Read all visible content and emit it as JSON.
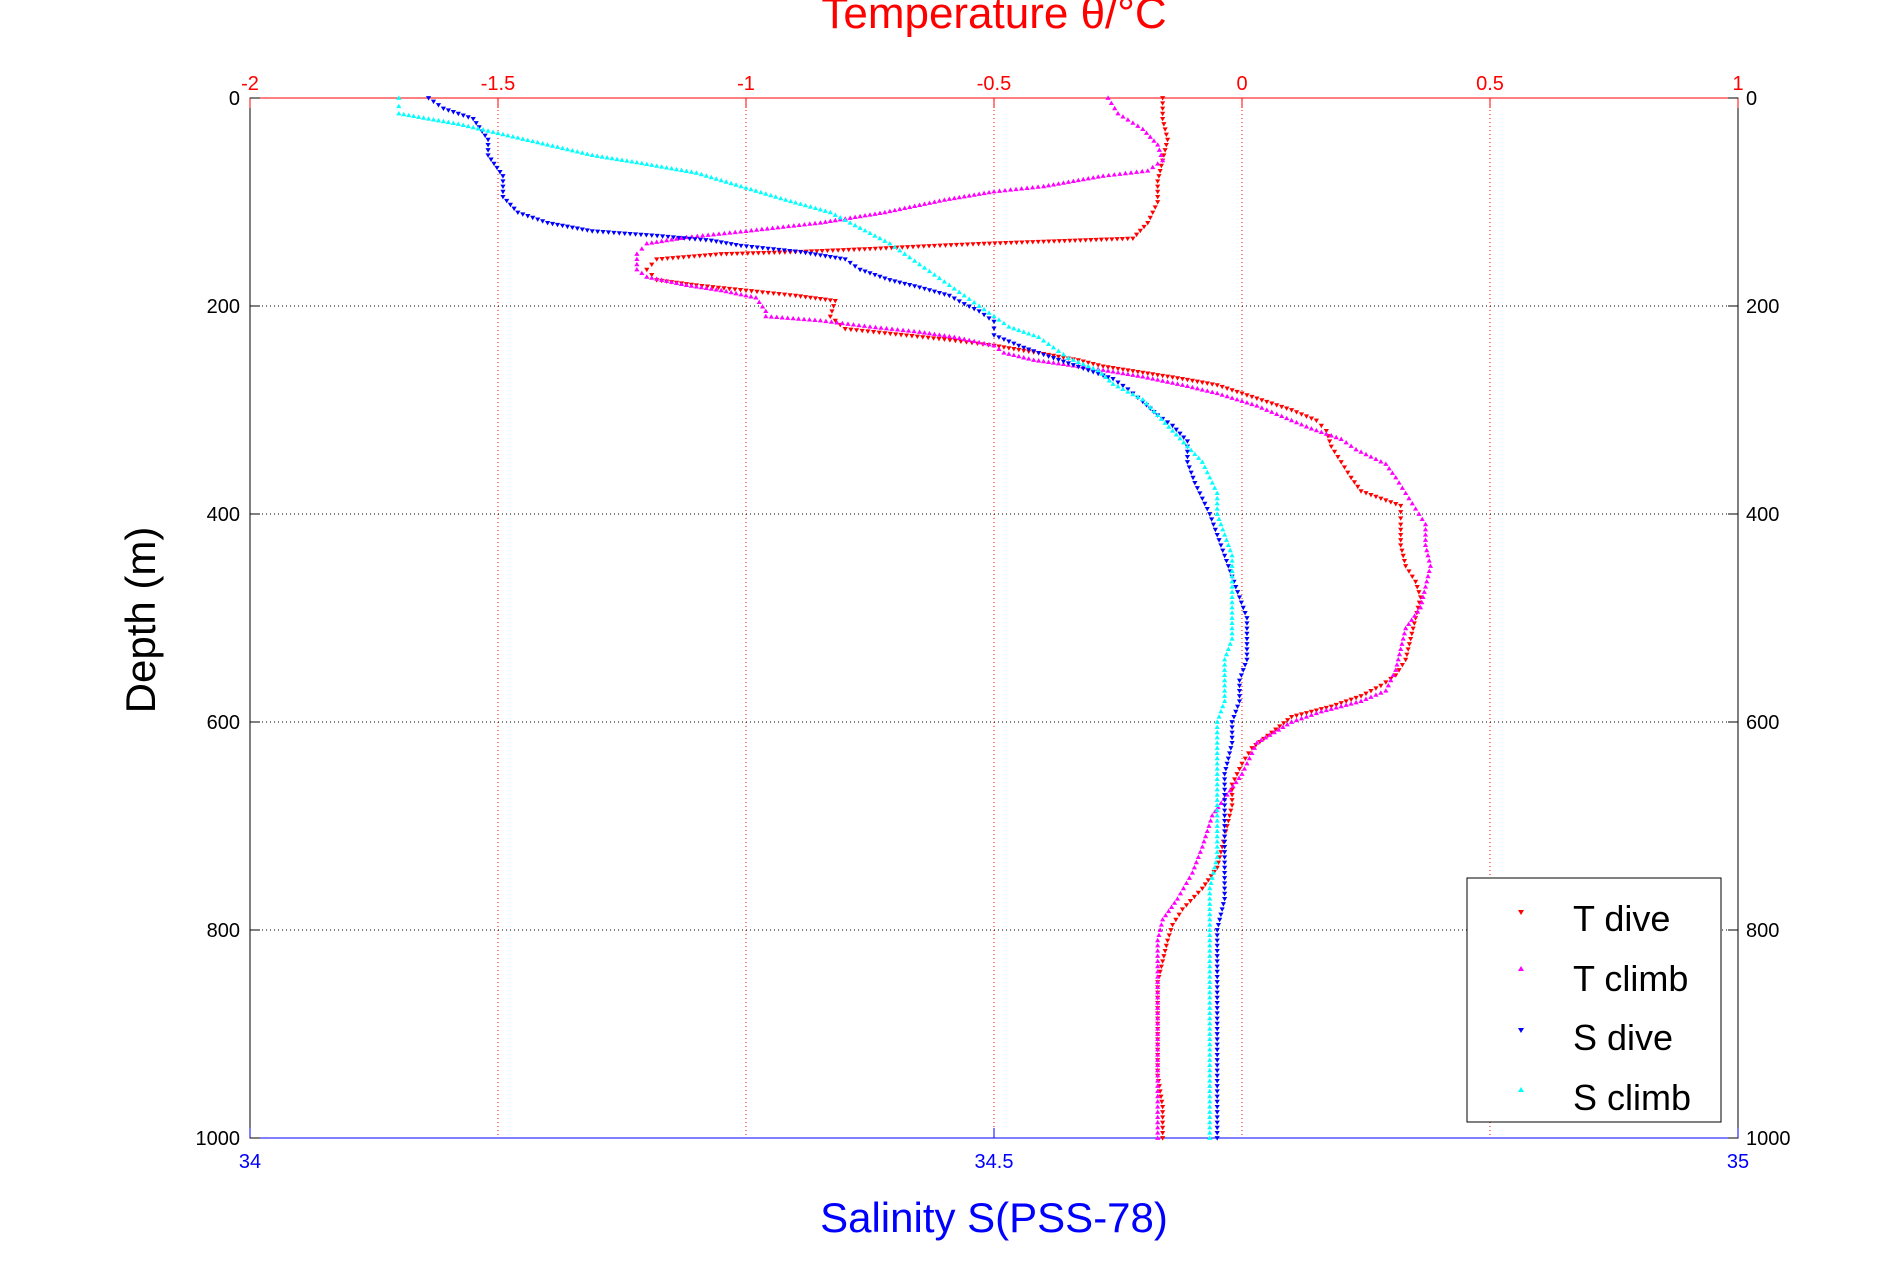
{
  "chart_data": {
    "type": "scatter",
    "title": "Temperature θ/°C",
    "ylabel": "Depth (m)",
    "xlabel": "Salinity S(PSS-78)",
    "temperature_axis": {
      "range": [
        -2,
        1
      ],
      "ticks": [
        "-2",
        "-1.5",
        "-1",
        "-0.5",
        "0",
        "0.5",
        "1"
      ],
      "color": "#ff0000"
    },
    "salinity_axis": {
      "range": [
        34,
        35
      ],
      "ticks": [
        "34",
        "34.5",
        "35"
      ],
      "color": "#0000ff"
    },
    "depth_axis": {
      "range": [
        0,
        1000
      ],
      "reversed": true,
      "ticks": [
        "0",
        "200",
        "400",
        "600",
        "800",
        "1000"
      ]
    },
    "grid": true,
    "legend_position": "bottom-right",
    "series": [
      {
        "name": "T dive",
        "axis": "temperature",
        "color": "#ff0000",
        "marker": "triangle-down",
        "points": [
          [
            -0.16,
            0
          ],
          [
            -0.16,
            20
          ],
          [
            -0.15,
            40
          ],
          [
            -0.16,
            60
          ],
          [
            -0.17,
            80
          ],
          [
            -0.17,
            100
          ],
          [
            -0.19,
            120
          ],
          [
            -0.22,
            135
          ],
          [
            -0.4,
            138
          ],
          [
            -0.52,
            140
          ],
          [
            -0.62,
            142
          ],
          [
            -0.75,
            145
          ],
          [
            -0.9,
            148
          ],
          [
            -1.05,
            150
          ],
          [
            -1.18,
            155
          ],
          [
            -1.2,
            165
          ],
          [
            -1.18,
            175
          ],
          [
            -1.1,
            180
          ],
          [
            -1.0,
            185
          ],
          [
            -0.9,
            190
          ],
          [
            -0.82,
            195
          ],
          [
            -0.83,
            210
          ],
          [
            -0.8,
            222
          ],
          [
            -0.72,
            226
          ],
          [
            -0.6,
            232
          ],
          [
            -0.5,
            238
          ],
          [
            -0.4,
            246
          ],
          [
            -0.33,
            252
          ],
          [
            -0.28,
            258
          ],
          [
            -0.2,
            264
          ],
          [
            -0.12,
            270
          ],
          [
            -0.05,
            276
          ],
          [
            0.0,
            284
          ],
          [
            0.05,
            292
          ],
          [
            0.1,
            300
          ],
          [
            0.15,
            310
          ],
          [
            0.17,
            320
          ],
          [
            0.18,
            335
          ],
          [
            0.2,
            350
          ],
          [
            0.22,
            365
          ],
          [
            0.24,
            378
          ],
          [
            0.28,
            385
          ],
          [
            0.32,
            392
          ],
          [
            0.32,
            410
          ],
          [
            0.32,
            430
          ],
          [
            0.33,
            450
          ],
          [
            0.35,
            465
          ],
          [
            0.36,
            480
          ],
          [
            0.35,
            500
          ],
          [
            0.34,
            520
          ],
          [
            0.33,
            540
          ],
          [
            0.31,
            555
          ],
          [
            0.28,
            565
          ],
          [
            0.24,
            575
          ],
          [
            0.18,
            585
          ],
          [
            0.1,
            595
          ],
          [
            0.06,
            610
          ],
          [
            0.02,
            625
          ],
          [
            0.0,
            640
          ],
          [
            -0.02,
            660
          ],
          [
            -0.02,
            680
          ],
          [
            -0.03,
            700
          ],
          [
            -0.04,
            720
          ],
          [
            -0.05,
            740
          ],
          [
            -0.08,
            760
          ],
          [
            -0.12,
            780
          ],
          [
            -0.14,
            795
          ],
          [
            -0.15,
            810
          ],
          [
            -0.16,
            830
          ],
          [
            -0.17,
            850
          ],
          [
            -0.17,
            880
          ],
          [
            -0.17,
            910
          ],
          [
            -0.17,
            940
          ],
          [
            -0.16,
            970
          ],
          [
            -0.16,
            1000
          ]
        ]
      },
      {
        "name": "T climb",
        "axis": "temperature",
        "color": "#ff00ff",
        "marker": "triangle-up",
        "points": [
          [
            -0.27,
            0
          ],
          [
            -0.25,
            15
          ],
          [
            -0.2,
            30
          ],
          [
            -0.17,
            45
          ],
          [
            -0.16,
            60
          ],
          [
            -0.19,
            70
          ],
          [
            -0.28,
            75
          ],
          [
            -0.4,
            85
          ],
          [
            -0.5,
            90
          ],
          [
            -0.6,
            98
          ],
          [
            -0.72,
            110
          ],
          [
            -0.85,
            120
          ],
          [
            -1.0,
            128
          ],
          [
            -1.12,
            134
          ],
          [
            -1.2,
            140
          ],
          [
            -1.22,
            150
          ],
          [
            -1.22,
            165
          ],
          [
            -1.2,
            172
          ],
          [
            -1.12,
            180
          ],
          [
            -1.05,
            185
          ],
          [
            -0.98,
            192
          ],
          [
            -0.96,
            205
          ],
          [
            -0.96,
            210
          ],
          [
            -0.85,
            214
          ],
          [
            -0.75,
            220
          ],
          [
            -0.65,
            225
          ],
          [
            -0.58,
            230
          ],
          [
            -0.5,
            238
          ],
          [
            -0.48,
            245
          ],
          [
            -0.42,
            252
          ],
          [
            -0.3,
            260
          ],
          [
            -0.2,
            268
          ],
          [
            -0.12,
            276
          ],
          [
            -0.05,
            284
          ],
          [
            0.03,
            296
          ],
          [
            0.08,
            306
          ],
          [
            0.14,
            318
          ],
          [
            0.2,
            328
          ],
          [
            0.23,
            338
          ],
          [
            0.26,
            345
          ],
          [
            0.29,
            352
          ],
          [
            0.31,
            365
          ],
          [
            0.33,
            380
          ],
          [
            0.35,
            395
          ],
          [
            0.37,
            410
          ],
          [
            0.37,
            430
          ],
          [
            0.38,
            450
          ],
          [
            0.37,
            470
          ],
          [
            0.36,
            490
          ],
          [
            0.33,
            510
          ],
          [
            0.32,
            530
          ],
          [
            0.31,
            550
          ],
          [
            0.29,
            570
          ],
          [
            0.24,
            580
          ],
          [
            0.16,
            590
          ],
          [
            0.1,
            600
          ],
          [
            0.03,
            620
          ],
          [
            0.0,
            650
          ],
          [
            -0.03,
            670
          ],
          [
            -0.06,
            690
          ],
          [
            -0.08,
            720
          ],
          [
            -0.1,
            745
          ],
          [
            -0.13,
            770
          ],
          [
            -0.16,
            790
          ],
          [
            -0.17,
            810
          ],
          [
            -0.17,
            850
          ],
          [
            -0.17,
            890
          ],
          [
            -0.17,
            930
          ],
          [
            -0.17,
            970
          ],
          [
            -0.17,
            1000
          ]
        ]
      },
      {
        "name": "S dive",
        "axis": "salinity",
        "color": "#0000ff",
        "marker": "triangle-down",
        "points": [
          [
            34.12,
            0
          ],
          [
            34.13,
            10
          ],
          [
            34.15,
            20
          ],
          [
            34.16,
            40
          ],
          [
            34.16,
            55
          ],
          [
            34.17,
            75
          ],
          [
            34.17,
            95
          ],
          [
            34.18,
            110
          ],
          [
            34.2,
            120
          ],
          [
            34.23,
            128
          ],
          [
            34.27,
            132
          ],
          [
            34.31,
            137
          ],
          [
            34.33,
            142
          ],
          [
            34.37,
            148
          ],
          [
            34.4,
            155
          ],
          [
            34.41,
            165
          ],
          [
            34.43,
            175
          ],
          [
            34.45,
            182
          ],
          [
            34.47,
            190
          ],
          [
            34.48,
            198
          ],
          [
            34.49,
            205
          ],
          [
            34.5,
            215
          ],
          [
            34.5,
            228
          ],
          [
            34.52,
            240
          ],
          [
            34.54,
            250
          ],
          [
            34.56,
            260
          ],
          [
            34.58,
            270
          ],
          [
            34.59,
            280
          ],
          [
            34.6,
            292
          ],
          [
            34.61,
            305
          ],
          [
            34.62,
            315
          ],
          [
            34.63,
            330
          ],
          [
            34.63,
            350
          ],
          [
            34.635,
            370
          ],
          [
            34.64,
            385
          ],
          [
            34.645,
            400
          ],
          [
            34.65,
            420
          ],
          [
            34.655,
            440
          ],
          [
            34.66,
            460
          ],
          [
            34.665,
            480
          ],
          [
            34.67,
            500
          ],
          [
            34.67,
            520
          ],
          [
            34.67,
            540
          ],
          [
            34.665,
            560
          ],
          [
            34.665,
            580
          ],
          [
            34.66,
            600
          ],
          [
            34.66,
            620
          ],
          [
            34.655,
            650
          ],
          [
            34.655,
            680
          ],
          [
            34.655,
            710
          ],
          [
            34.655,
            740
          ],
          [
            34.655,
            770
          ],
          [
            34.65,
            800
          ],
          [
            34.65,
            830
          ],
          [
            34.65,
            860
          ],
          [
            34.65,
            890
          ],
          [
            34.65,
            920
          ],
          [
            34.65,
            950
          ],
          [
            34.65,
            980
          ],
          [
            34.65,
            1000
          ]
        ]
      },
      {
        "name": "S climb",
        "axis": "salinity",
        "color": "#00ffff",
        "marker": "triangle-up",
        "points": [
          [
            34.1,
            0
          ],
          [
            34.1,
            8
          ],
          [
            34.1,
            15
          ],
          [
            34.14,
            25
          ],
          [
            34.17,
            35
          ],
          [
            34.2,
            45
          ],
          [
            34.23,
            55
          ],
          [
            34.26,
            62
          ],
          [
            34.3,
            72
          ],
          [
            34.33,
            85
          ],
          [
            34.36,
            98
          ],
          [
            34.39,
            110
          ],
          [
            34.41,
            125
          ],
          [
            34.43,
            140
          ],
          [
            34.44,
            150
          ],
          [
            34.45,
            160
          ],
          [
            34.46,
            170
          ],
          [
            34.47,
            180
          ],
          [
            34.48,
            190
          ],
          [
            34.49,
            200
          ],
          [
            34.5,
            210
          ],
          [
            34.51,
            220
          ],
          [
            34.53,
            230
          ],
          [
            34.54,
            240
          ],
          [
            34.55,
            250
          ],
          [
            34.57,
            262
          ],
          [
            34.58,
            275
          ],
          [
            34.6,
            290
          ],
          [
            34.61,
            305
          ],
          [
            34.62,
            320
          ],
          [
            34.63,
            335
          ],
          [
            34.64,
            350
          ],
          [
            34.645,
            365
          ],
          [
            34.65,
            380
          ],
          [
            34.65,
            400
          ],
          [
            34.655,
            420
          ],
          [
            34.66,
            440
          ],
          [
            34.66,
            460
          ],
          [
            34.66,
            480
          ],
          [
            34.66,
            500
          ],
          [
            34.66,
            520
          ],
          [
            34.655,
            540
          ],
          [
            34.655,
            560
          ],
          [
            34.655,
            580
          ],
          [
            34.65,
            600
          ],
          [
            34.65,
            620
          ],
          [
            34.65,
            640
          ],
          [
            34.65,
            660
          ],
          [
            34.65,
            680
          ],
          [
            34.65,
            700
          ],
          [
            34.65,
            730
          ],
          [
            34.645,
            760
          ],
          [
            34.645,
            790
          ],
          [
            34.645,
            820
          ],
          [
            34.645,
            850
          ],
          [
            34.645,
            880
          ],
          [
            34.645,
            910
          ],
          [
            34.645,
            940
          ],
          [
            34.645,
            970
          ],
          [
            34.645,
            1000
          ]
        ]
      }
    ]
  }
}
